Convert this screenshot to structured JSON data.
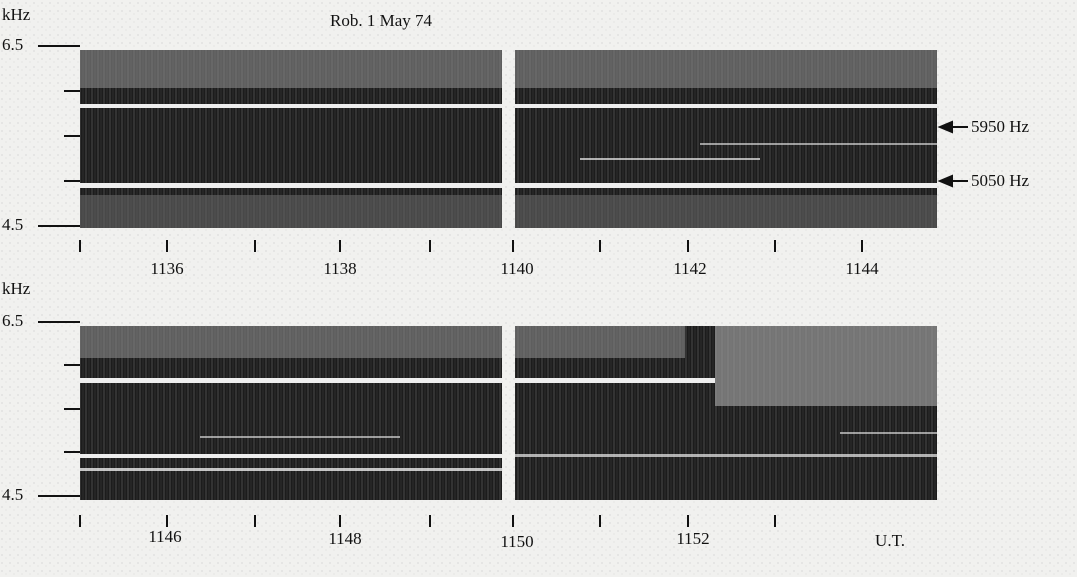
{
  "figure": {
    "title": "Rob. 1 May 74",
    "panels": [
      {
        "y_unit": "kHz",
        "y_labels": [
          "6.5",
          "4.5"
        ],
        "x_labels": [
          "1136",
          "1138",
          "1140",
          "1142",
          "1144"
        ]
      },
      {
        "y_unit": "kHz",
        "y_labels": [
          "6.5",
          "4.5"
        ],
        "x_labels": [
          "1146",
          "1148",
          "1150",
          "1152"
        ],
        "time_unit": "U.T."
      }
    ],
    "annotations": [
      "5950 Hz",
      "5050 Hz"
    ]
  }
}
